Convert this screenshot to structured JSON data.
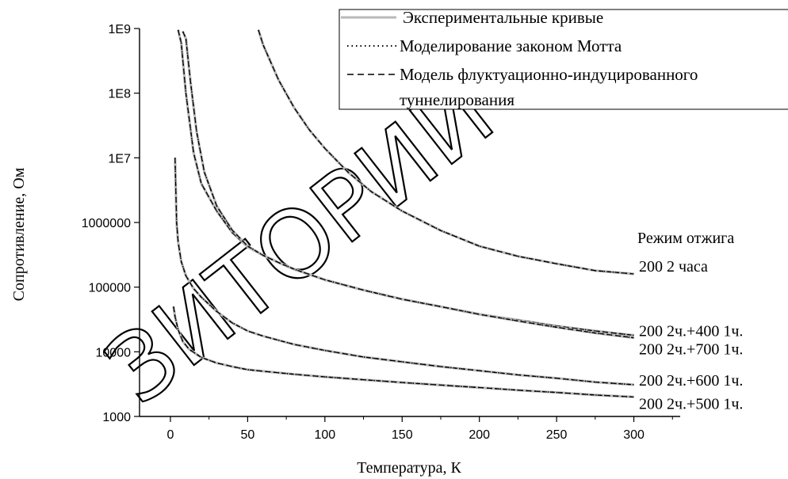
{
  "watermark": "ЗИТОРИЙ Г",
  "chart_data": {
    "type": "line",
    "title": "",
    "xlabel": "Температура, К",
    "ylabel": "Сопротивление, Ом",
    "xlim": [
      -20,
      330
    ],
    "ylim": [
      1000,
      1000000000
    ],
    "yscale": "log",
    "x_ticks": [
      0,
      50,
      100,
      150,
      200,
      250,
      300
    ],
    "y_ticks": [
      {
        "value": 1000,
        "label": "1000"
      },
      {
        "value": 10000,
        "label": "10000"
      },
      {
        "value": 100000,
        "label": "100000"
      },
      {
        "value": 1000000,
        "label": "1000000"
      },
      {
        "value": 10000000,
        "label": "1E7"
      },
      {
        "value": 100000000,
        "label": "1E8"
      },
      {
        "value": 1000000000,
        "label": "1E9"
      }
    ],
    "grid": false,
    "legend_position": "top-right",
    "legend": [
      {
        "label": "Экспериментальные кривые",
        "style": "solid",
        "color": "#b9b9b9"
      },
      {
        "label": "Моделирование законом Мотта",
        "style": "dotted",
        "color": "#000000"
      },
      {
        "label": "Модель флуктуационно-индуцированного туннелирования",
        "style": "dashed",
        "color": "#000000"
      }
    ],
    "annotation_title": "Режим отжига",
    "series": [
      {
        "name": "200 2 часа",
        "x": [
          57,
          60,
          65,
          70,
          80,
          90,
          100,
          115,
          130,
          150,
          175,
          200,
          225,
          250,
          275,
          300
        ],
        "y": [
          950000000,
          560000000,
          300000000,
          160000000,
          60000000,
          27000000,
          14000000,
          6000000,
          3000000,
          1500000,
          750000,
          430000,
          300000,
          230000,
          180000,
          160000
        ]
      },
      {
        "name": "200 2ч.+400 1ч.",
        "x": [
          5,
          7,
          10,
          15,
          20,
          30,
          40,
          50,
          60,
          70,
          80,
          100,
          125,
          150,
          175,
          200,
          225,
          250,
          275,
          300
        ],
        "y": [
          950000000,
          600000000,
          100000000,
          12000000,
          4000000,
          1500000,
          700000,
          420000,
          310000,
          240000,
          190000,
          130000,
          90000,
          65000,
          50000,
          38000,
          31000,
          25000,
          21000,
          18000
        ]
      },
      {
        "name": "200 2ч.+700 1ч.",
        "x": [
          8,
          10,
          13,
          17,
          22,
          30,
          40,
          50,
          60,
          70,
          80,
          100,
          125,
          150,
          175,
          200,
          225,
          250,
          275,
          300
        ],
        "y": [
          900000000,
          700000000,
          150000000,
          25000000,
          6000000,
          1800000,
          760000,
          430000,
          310000,
          240000,
          190000,
          130000,
          90000,
          65000,
          50000,
          38000,
          30000,
          24000,
          19500,
          16500
        ]
      },
      {
        "name": "200 2ч.+600 1ч.",
        "x": [
          3,
          4,
          5,
          7,
          10,
          15,
          20,
          30,
          40,
          50,
          60,
          80,
          100,
          125,
          150,
          175,
          200,
          225,
          250,
          275,
          300
        ],
        "y": [
          10000000,
          1000000,
          500000,
          250000,
          150000,
          95000,
          70000,
          42000,
          28000,
          21000,
          17500,
          13000,
          10500,
          8300,
          7000,
          5900,
          5100,
          4400,
          3900,
          3400,
          3100
        ]
      },
      {
        "name": "200 2ч.+500 1ч.",
        "x": [
          2,
          3,
          5,
          8,
          12,
          20,
          30,
          40,
          50,
          60,
          80,
          100,
          125,
          150,
          175,
          200,
          225,
          250,
          275,
          300
        ],
        "y": [
          50000,
          35000,
          22000,
          14500,
          11000,
          8200,
          6700,
          5900,
          5300,
          5000,
          4500,
          4100,
          3700,
          3350,
          3050,
          2800,
          2550,
          2350,
          2150,
          2000
        ]
      }
    ]
  }
}
